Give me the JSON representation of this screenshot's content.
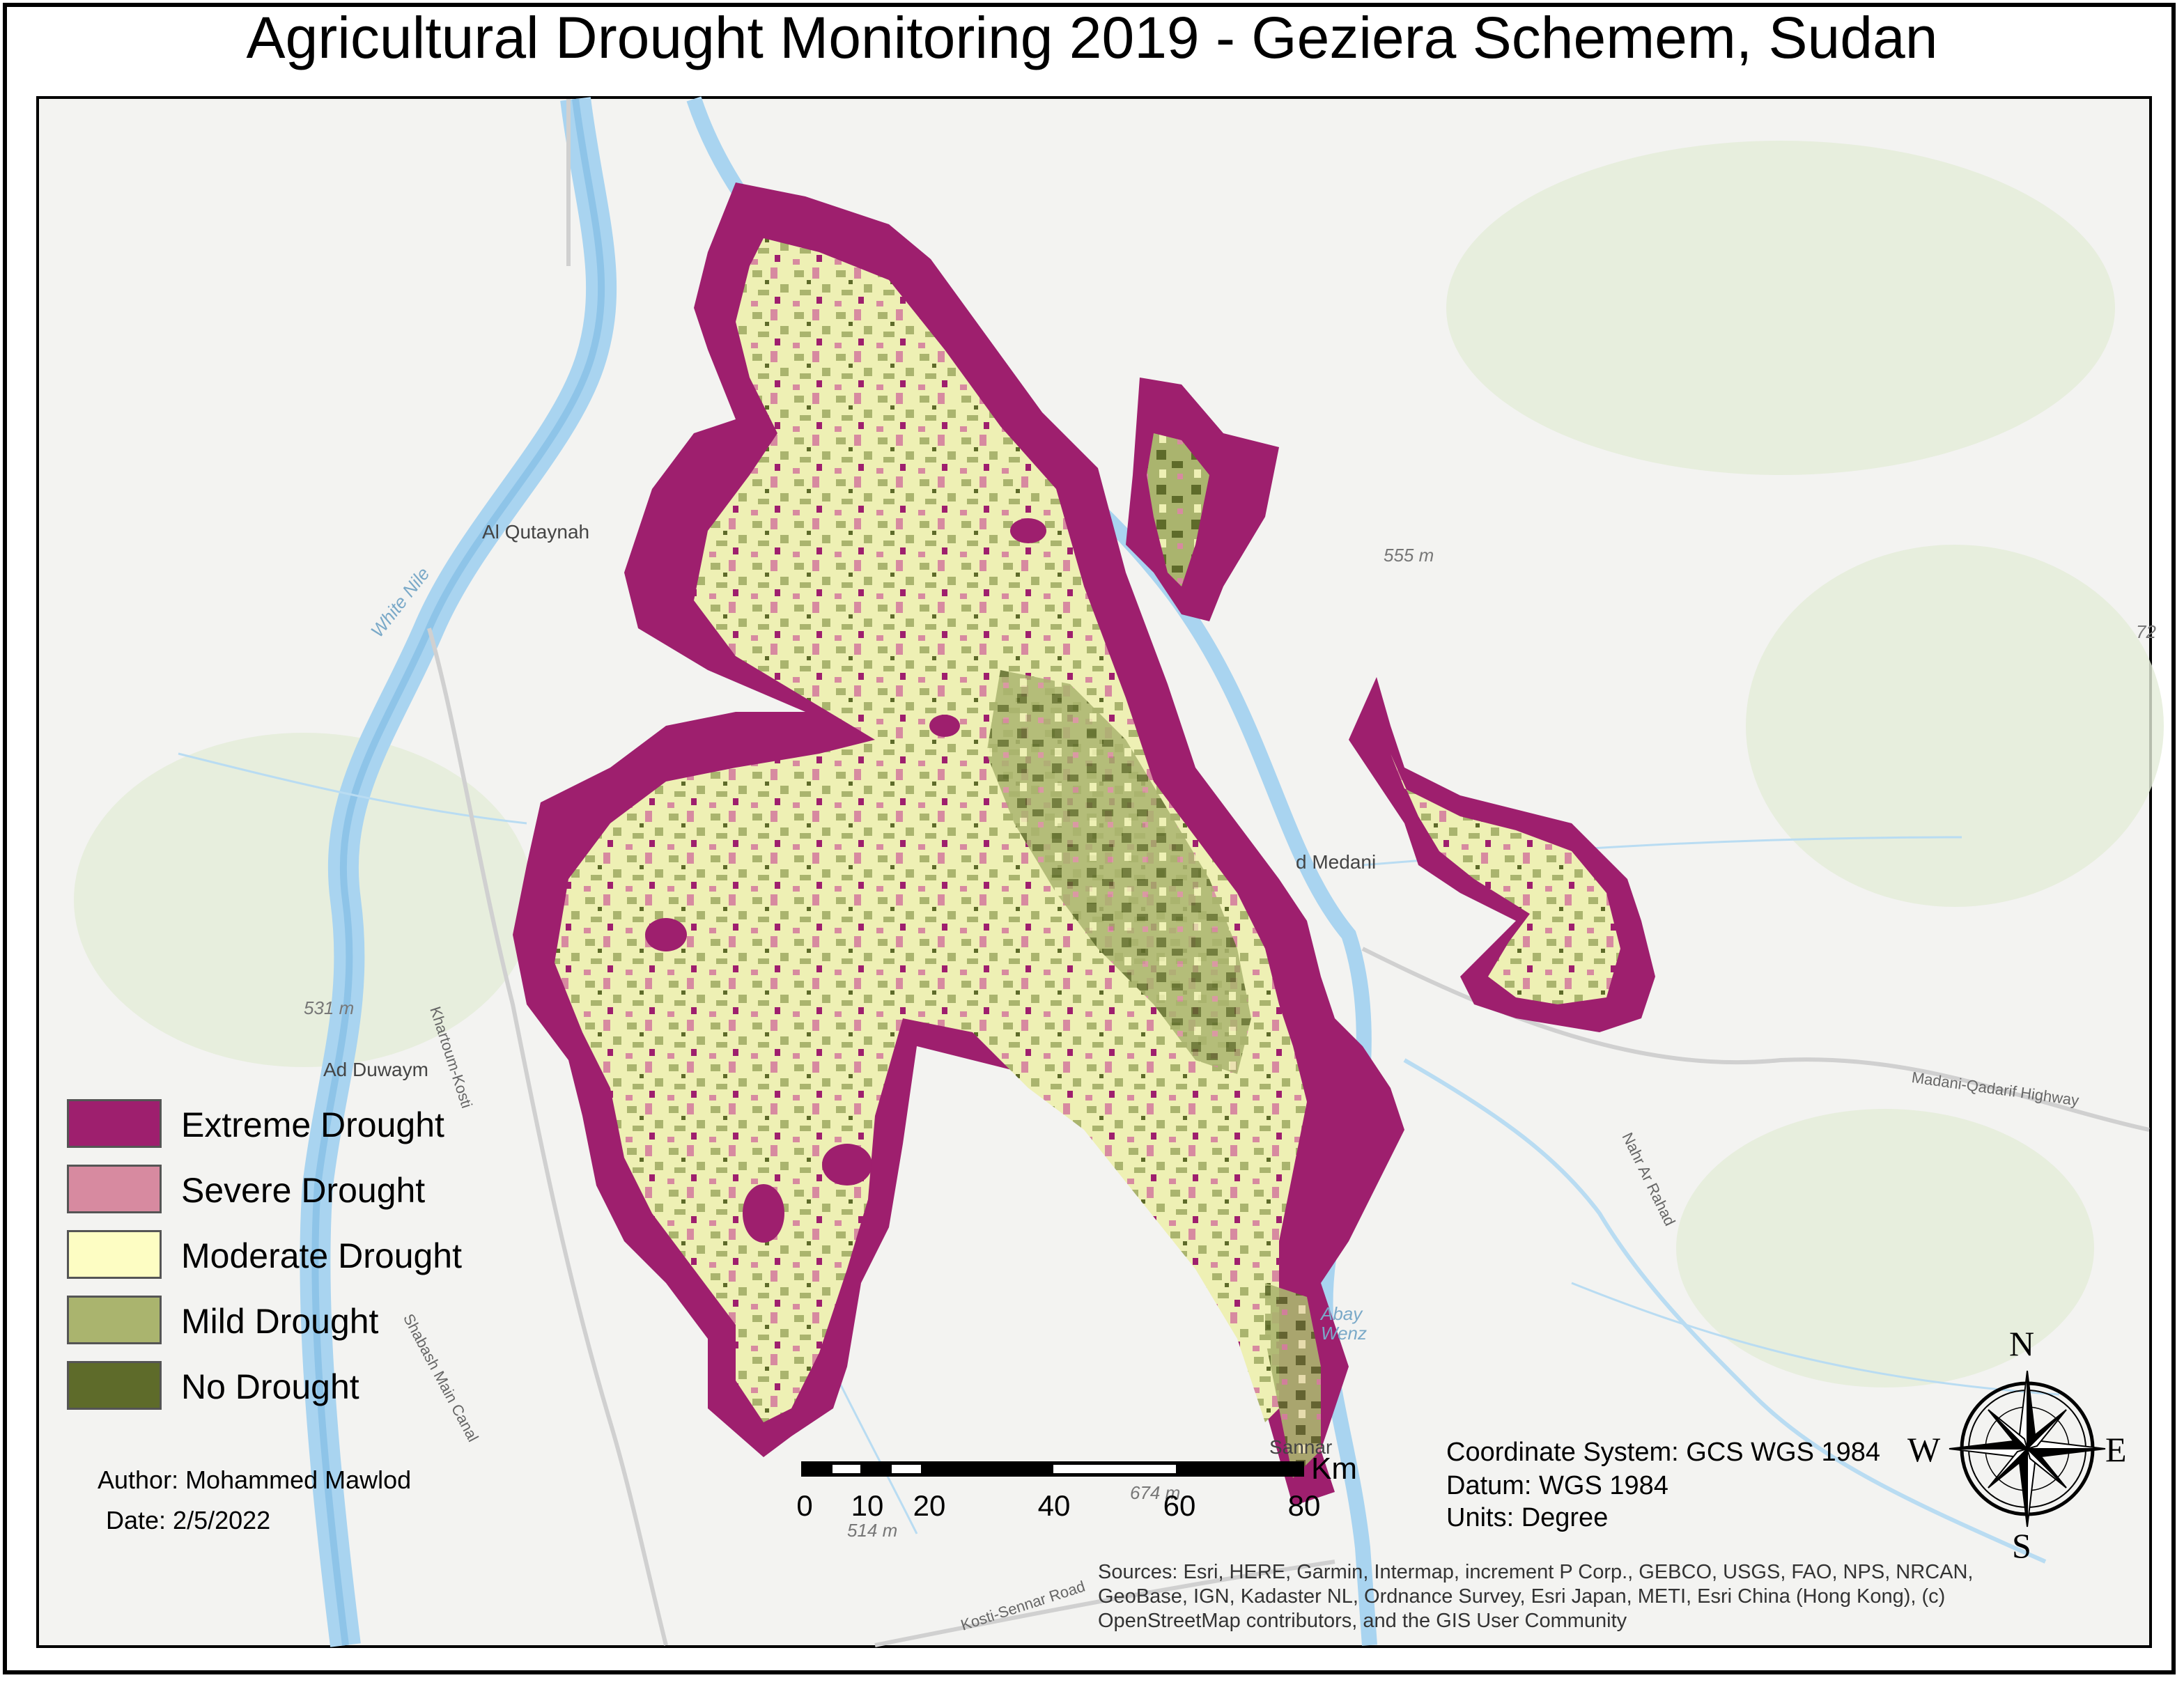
{
  "title": "Agricultural Drought Monitoring 2019 - Geziera Schemem, Sudan",
  "colors": {
    "extreme": "#9e1f6e",
    "severe": "#d78aa0",
    "moderate": "#fdfdc3",
    "mild": "#aab46e",
    "none": "#5e6b2a",
    "river": "#a9d4f0",
    "basemap": "#f3f3f1"
  },
  "legend": {
    "items": [
      {
        "label": "Extreme Drought",
        "color": "#9e1f6e"
      },
      {
        "label": "Severe Drought",
        "color": "#d78aa0"
      },
      {
        "label": "Moderate Drought",
        "color": "#fdfdc3"
      },
      {
        "label": "Mild Drought",
        "color": "#aab46e"
      },
      {
        "label": "No Drought",
        "color": "#5e6b2a"
      }
    ]
  },
  "places": {
    "al_qutaynah": "Al Qutaynah",
    "ad_duwaym": "Ad Duwaym",
    "wad_medani": "d Medani",
    "sannar": "Sannar"
  },
  "elevations": {
    "e555": "555 m",
    "e531": "531 m",
    "e514": "514 m",
    "e674": "674 m",
    "e72": "72"
  },
  "roads": {
    "khartoum_kosti": "Khartoum-Kosti",
    "madani_qadarif": "Madani-Qadarif Highway",
    "kosti_sennar": "Kosti-Sennar Road",
    "shabash_canal": "Shabash Main Canal",
    "nahr_ar_rahad": "Nahr Ar Rahad"
  },
  "water_labels": {
    "white_nile": "White Nile",
    "abay_wenz": "Abay Wenz"
  },
  "author": "Author: Mohammed Mawlod",
  "date": "Date: 2/5/2022",
  "scale_bar": {
    "unit": "Km",
    "labels": [
      "0",
      "10",
      "20",
      "40",
      "60",
      "80"
    ]
  },
  "coordinate_info": {
    "system": "Coordinate System: GCS WGS 1984",
    "datum": "Datum: WGS 1984",
    "units": "Units: Degree"
  },
  "compass": {
    "n": "N",
    "s": "S",
    "e": "E",
    "w": "W"
  },
  "sources": [
    "Sources: Esri, HERE, Garmin, Intermap, increment P Corp., GEBCO, USGS, FAO, NPS, NRCAN,",
    "GeoBase, IGN, Kadaster NL, Ordnance Survey, Esri Japan, METI, Esri China (Hong Kong), (c)",
    "OpenStreetMap contributors, and the GIS User Community"
  ]
}
